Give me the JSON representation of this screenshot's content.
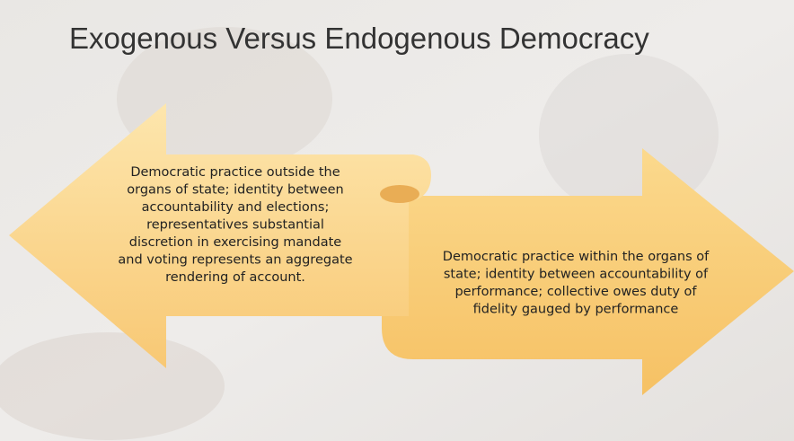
{
  "slide": {
    "title": "Exogenous Versus Endogenous Democracy",
    "arrows": [
      {
        "lines": [
          "Democratic practice outside the",
          "organs of state; identity between",
          "accountability and elections;",
          "representatives substantial",
          "discretion in exercising mandate",
          "and voting represents an aggregate",
          "rendering of account."
        ]
      },
      {
        "lines": [
          "Democratic practice within the organs of",
          "state; identity between accountability of",
          "performance; collective owes duty of",
          "fidelity gauged by performance"
        ]
      }
    ]
  }
}
